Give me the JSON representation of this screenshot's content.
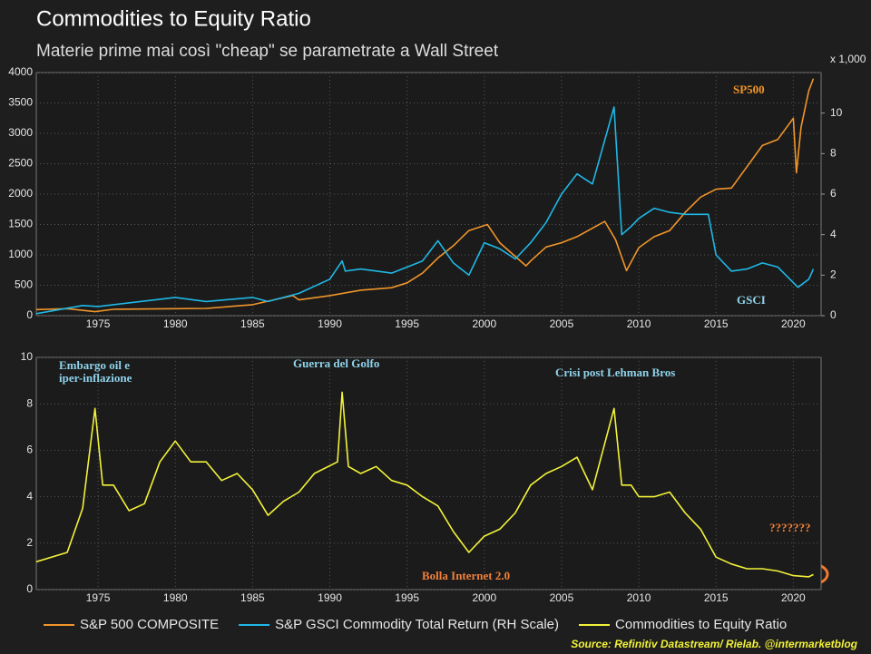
{
  "chart_data": [
    {
      "type": "line",
      "title": "Commodities to Equity Ratio",
      "subtitle": "Materie prime mai così \"cheap\" se parametrate a Wall Street",
      "xlim": [
        1971,
        2021.8
      ],
      "xticks": [
        1975,
        1980,
        1985,
        1990,
        1995,
        2000,
        2005,
        2010,
        2015,
        2020
      ],
      "ylim": [
        0,
        4000
      ],
      "yticks": [
        0,
        500,
        1000,
        1500,
        2000,
        2500,
        3000,
        3500,
        4000
      ],
      "y2lim": [
        0,
        12
      ],
      "y2ticks": [
        0,
        2,
        4,
        6,
        8,
        10
      ],
      "y2label": "x 1,000",
      "grid": true,
      "series": [
        {
          "name": "S&P 500 COMPOSITE",
          "color": "#f0952a",
          "x": [
            1971,
            1973,
            1974.8,
            1976,
            1980,
            1982,
            1985,
            1987.6,
            1988,
            1990,
            1992,
            1994,
            1995,
            1996,
            1997,
            1998,
            1999,
            2000.2,
            2001,
            2002.7,
            2003,
            2004,
            2005,
            2006,
            2007.8,
            2008.5,
            2009.2,
            2010,
            2011,
            2012,
            2013,
            2014,
            2015,
            2016,
            2017,
            2018,
            2019,
            2020,
            2020.2,
            2020.5,
            2021,
            2021.3
          ],
          "values": [
            100,
            115,
            65,
            105,
            115,
            120,
            180,
            330,
            260,
            330,
            420,
            460,
            540,
            700,
            950,
            1150,
            1400,
            1500,
            1200,
            820,
            900,
            1130,
            1200,
            1300,
            1550,
            1250,
            740,
            1120,
            1300,
            1400,
            1700,
            1950,
            2080,
            2100,
            2450,
            2800,
            2900,
            3250,
            2350,
            3100,
            3700,
            3900
          ]
        },
        {
          "name": "S&P GSCI Commodity Total Return (RH Scale)",
          "color": "#1fb8e6",
          "axis": "y2",
          "x": [
            1971,
            1974,
            1975,
            1980,
            1982,
            1985,
            1986,
            1988,
            1990,
            1990.8,
            1991,
            1992,
            1994,
            1996,
            1997,
            1998,
            1999,
            2000,
            2001,
            2002,
            2003,
            2004,
            2005,
            2006,
            2007,
            2008.4,
            2008.9,
            2009.5,
            2010,
            2011,
            2012,
            2013,
            2014.5,
            2015,
            2016,
            2017,
            2018,
            2019,
            2020.3,
            2021,
            2021.3
          ],
          "values": [
            0.1,
            0.5,
            0.45,
            0.9,
            0.7,
            0.9,
            0.7,
            1.1,
            1.8,
            2.7,
            2.2,
            2.3,
            2.1,
            2.7,
            3.7,
            2.6,
            2.0,
            3.6,
            3.3,
            2.8,
            3.6,
            4.6,
            6.0,
            7.0,
            6.5,
            10.3,
            4.0,
            4.4,
            4.8,
            5.3,
            5.1,
            5.0,
            5.0,
            3.0,
            2.2,
            2.3,
            2.6,
            2.4,
            1.4,
            1.8,
            2.3
          ]
        }
      ],
      "annotations": [
        {
          "text": "SP500",
          "color": "#f0952a"
        },
        {
          "text": "GSCI",
          "color": "#8fd3ea"
        }
      ]
    },
    {
      "type": "line",
      "xlim": [
        1971,
        2021.8
      ],
      "xticks": [
        1975,
        1980,
        1985,
        1990,
        1995,
        2000,
        2005,
        2010,
        2015,
        2020
      ],
      "ylim": [
        0,
        10
      ],
      "yticks": [
        0,
        2,
        4,
        6,
        8,
        10
      ],
      "grid": true,
      "series": [
        {
          "name": "Commodities to Equity Ratio",
          "color": "#f2f23a",
          "x": [
            1971,
            1973,
            1974,
            1974.8,
            1975.3,
            1976,
            1977,
            1978,
            1979,
            1980,
            1981,
            1982,
            1983,
            1984,
            1985,
            1986,
            1987,
            1988,
            1989,
            1990.5,
            1990.8,
            1991.2,
            1992,
            1993,
            1994,
            1995,
            1996,
            1997,
            1998,
            1999,
            2000,
            2001,
            2002,
            2003,
            2004,
            2005,
            2006,
            2007,
            2008.4,
            2008.9,
            2009.5,
            2010,
            2011,
            2012,
            2013,
            2014,
            2015,
            2016,
            2017,
            2018,
            2019,
            2020,
            2021,
            2021.3
          ],
          "values": [
            1.2,
            1.6,
            3.5,
            7.8,
            4.5,
            4.5,
            3.4,
            3.7,
            5.5,
            6.4,
            5.5,
            5.5,
            4.7,
            5.0,
            4.3,
            3.2,
            3.8,
            4.2,
            5.0,
            5.5,
            8.5,
            5.3,
            5.0,
            5.3,
            4.7,
            4.5,
            4.0,
            3.6,
            2.5,
            1.6,
            2.3,
            2.6,
            3.3,
            4.5,
            5.0,
            5.3,
            5.7,
            4.3,
            7.8,
            4.5,
            4.5,
            4.0,
            4.0,
            4.2,
            3.3,
            2.6,
            1.4,
            1.1,
            0.9,
            0.9,
            0.8,
            0.6,
            0.55,
            0.65
          ]
        }
      ],
      "annotations": [
        {
          "text": "Embargo oil e",
          "color": "#8fd3ea"
        },
        {
          "text": "iper-inflazione",
          "color": "#8fd3ea"
        },
        {
          "text": "Guerra del Golfo",
          "color": "#8fd3ea"
        },
        {
          "text": "Crisi post Lehman Bros",
          "color": "#8fd3ea"
        },
        {
          "text": "Bolla Internet 2.0",
          "color": "#f0803a"
        },
        {
          "text": "???????",
          "color": "#f0803a"
        }
      ],
      "source": "Source: Refinitiv Datastream/ Rielab. @intermarketblog"
    }
  ]
}
